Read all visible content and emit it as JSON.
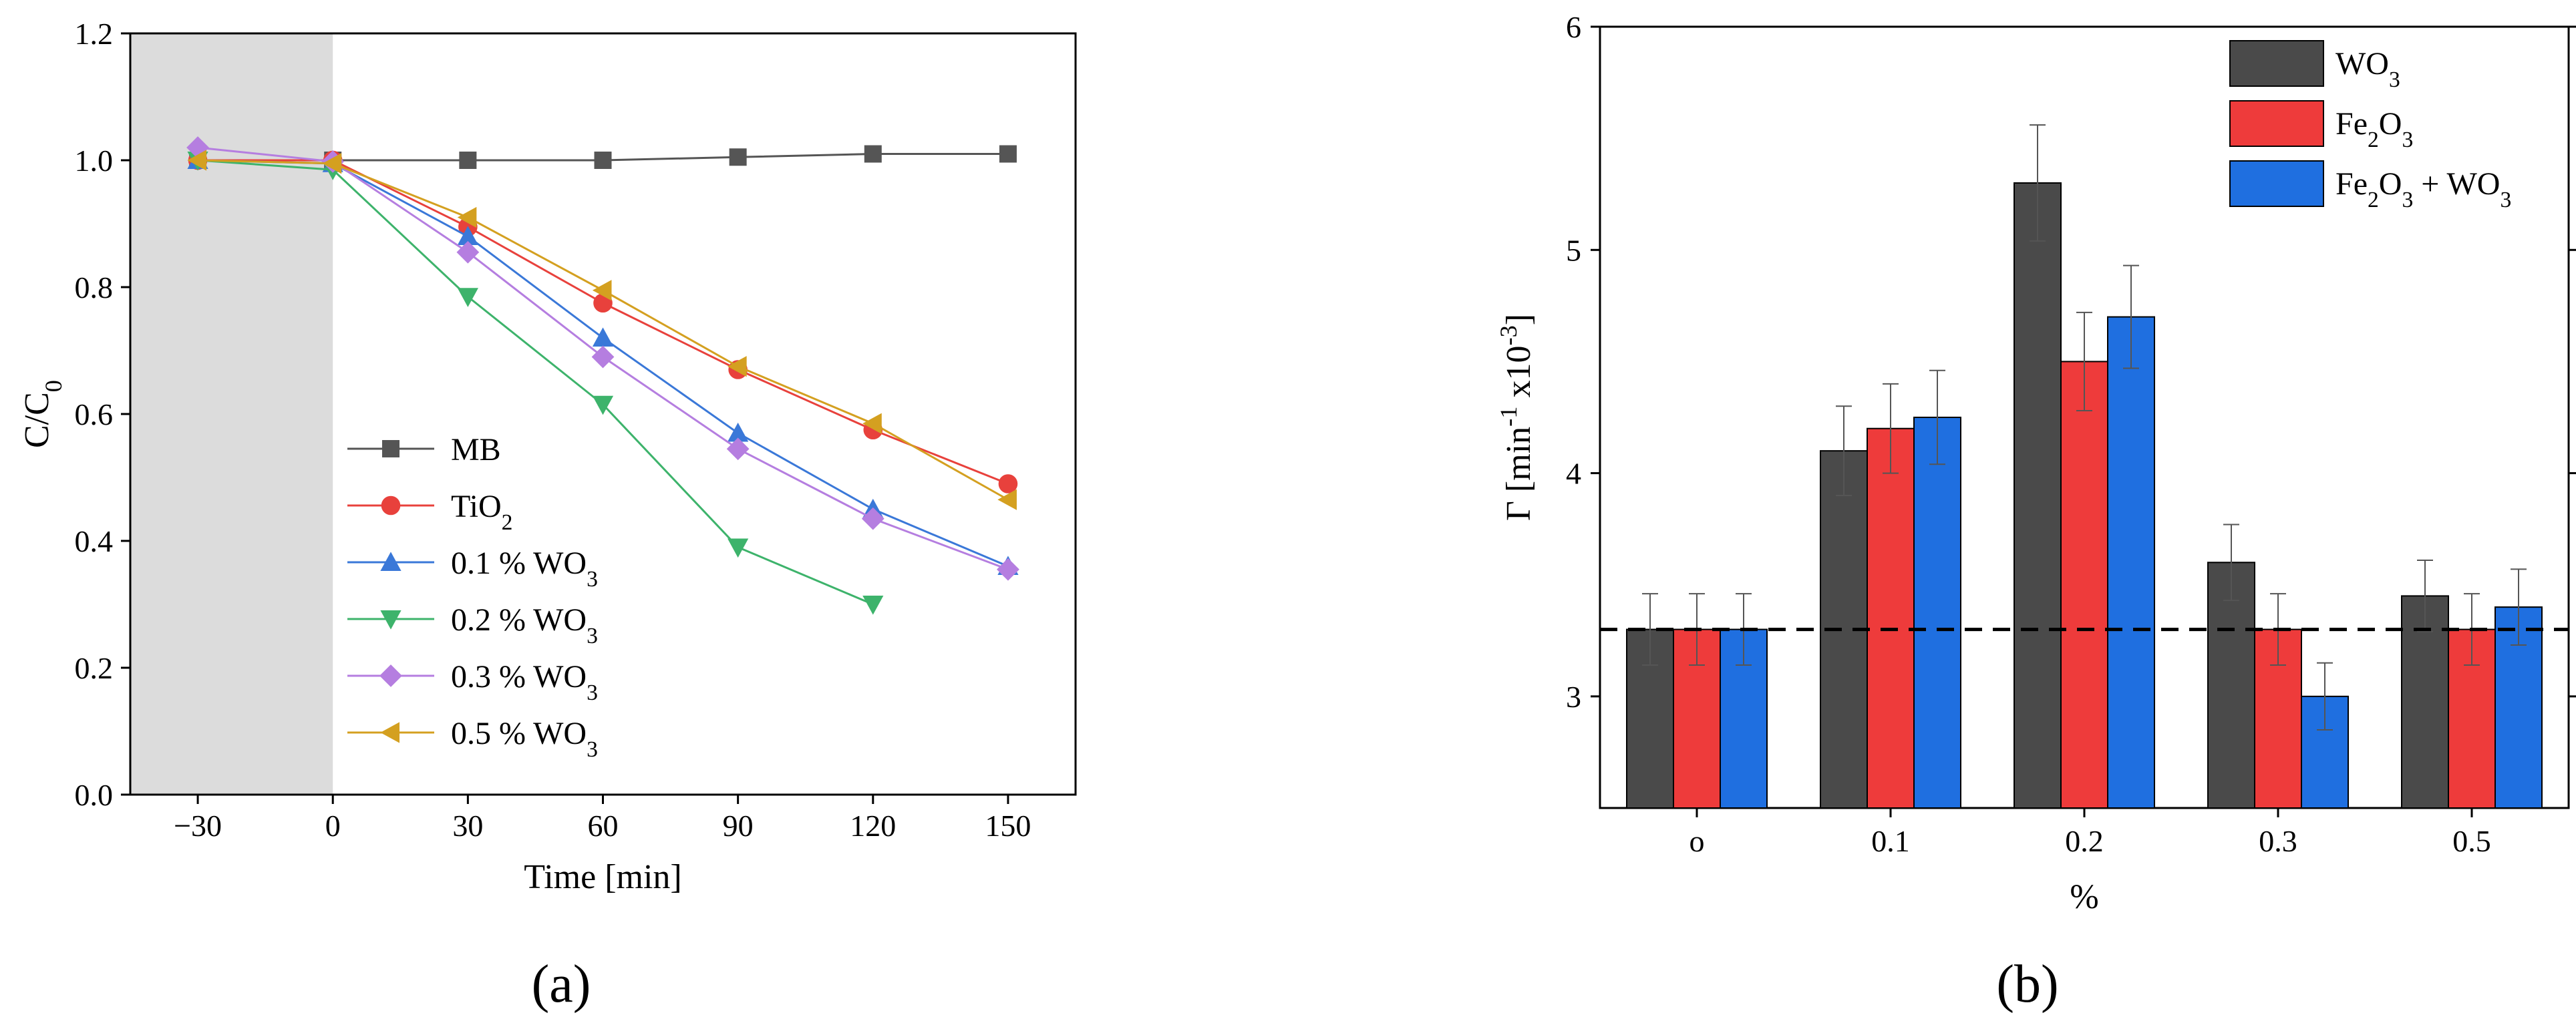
{
  "figure": {
    "panel_a_label": "(a)",
    "panel_b_label": "(b)"
  },
  "chart_data": [
    {
      "type": "line",
      "panel": "(a)",
      "xlabel": "Time [min]",
      "ylabel": "C/C0",
      "xlim": [
        -45,
        165
      ],
      "ylim": [
        0.0,
        1.2
      ],
      "x_ticks": [
        -30,
        0,
        30,
        60,
        90,
        120,
        150
      ],
      "x_tick_labels": [
        "−30",
        "0",
        "30",
        "60",
        "90",
        "120",
        "150"
      ],
      "y_ticks": [
        0.0,
        0.2,
        0.4,
        0.6,
        0.8,
        1.0,
        1.2
      ],
      "y_tick_labels": [
        "0.0",
        "0.2",
        "0.4",
        "0.6",
        "0.8",
        "1.0",
        "1.2"
      ],
      "dark_region_x": [
        -45,
        0
      ],
      "legend_position": "lower-left",
      "series": [
        {
          "name": "MB",
          "sub": "",
          "color": "#555555",
          "marker": "square",
          "x": [
            -30,
            0,
            30,
            60,
            90,
            120,
            150
          ],
          "y": [
            1.0,
            1.0,
            1.0,
            1.0,
            1.005,
            1.01,
            1.01
          ]
        },
        {
          "name": "TiO",
          "sub": "2",
          "color": "#e8413c",
          "marker": "circle",
          "x": [
            -30,
            0,
            30,
            60,
            90,
            120,
            150
          ],
          "y": [
            1.0,
            1.0,
            0.895,
            0.775,
            0.67,
            0.575,
            0.49
          ]
        },
        {
          "name": "0.1 % WO",
          "sub": "3",
          "color": "#3a78d8",
          "marker": "triangle-up",
          "x": [
            -30,
            0,
            30,
            60,
            90,
            120,
            150
          ],
          "y": [
            1.0,
            0.995,
            0.88,
            0.72,
            0.57,
            0.45,
            0.36
          ]
        },
        {
          "name": "0.2 % WO",
          "sub": "3",
          "color": "#3db36b",
          "marker": "triangle-down",
          "x": [
            -30,
            0,
            30,
            60,
            90,
            120
          ],
          "y": [
            1.0,
            0.985,
            0.785,
            0.615,
            0.39,
            0.3
          ]
        },
        {
          "name": "0.3 % WO",
          "sub": "3",
          "color": "#b57ee0",
          "marker": "diamond",
          "x": [
            -30,
            0,
            30,
            60,
            90,
            120,
            150
          ],
          "y": [
            1.02,
            0.998,
            0.855,
            0.69,
            0.545,
            0.435,
            0.355
          ]
        },
        {
          "name": "0.5 % WO",
          "sub": "3",
          "color": "#d4a020",
          "marker": "triangle-left",
          "x": [
            -30,
            0,
            30,
            60,
            90,
            120,
            150
          ],
          "y": [
            1.0,
            0.995,
            0.91,
            0.795,
            0.675,
            0.585,
            0.465
          ]
        }
      ]
    },
    {
      "type": "bar",
      "panel": "(b)",
      "xlabel": "%",
      "ylabel": "Γ [min-1 x10-3]",
      "ylabel_parts": {
        "main": "Γ [min",
        "sup1": "-1",
        "mid": " x10",
        "sup2": "-3",
        "end": "]"
      },
      "ylim": [
        2.5,
        6.0
      ],
      "y_ticks": [
        3,
        4,
        5,
        6
      ],
      "y_tick_labels": [
        "3",
        "4",
        "5",
        "6"
      ],
      "categories": [
        "o",
        "0.1",
        "0.2",
        "0.3",
        "0.5"
      ],
      "reference_line_y": 3.3,
      "legend_position": "top-right",
      "series": [
        {
          "name": "WO",
          "sub1": "3",
          "rest": "",
          "color": "#4a4a4a",
          "values": [
            3.3,
            4.1,
            5.3,
            3.6,
            3.45
          ],
          "errors": [
            0.16,
            0.2,
            0.26,
            0.17,
            0.16
          ]
        },
        {
          "name": "Fe",
          "sub1": "2",
          "rest": "O",
          "sub2": "3",
          "tail": "",
          "color": "#ee3b3b",
          "values": [
            3.3,
            4.2,
            4.5,
            3.3,
            3.3
          ],
          "errors": [
            0.16,
            0.2,
            0.22,
            0.16,
            0.16
          ]
        },
        {
          "name": "Fe",
          "sub1": "2",
          "rest": "O",
          "sub2": "3",
          "tail": " + WO",
          "sub3": "3",
          "color": "#1f6fe0",
          "values": [
            3.3,
            4.25,
            4.7,
            3.0,
            3.4
          ],
          "errors": [
            0.16,
            0.21,
            0.23,
            0.15,
            0.17
          ]
        }
      ]
    }
  ]
}
